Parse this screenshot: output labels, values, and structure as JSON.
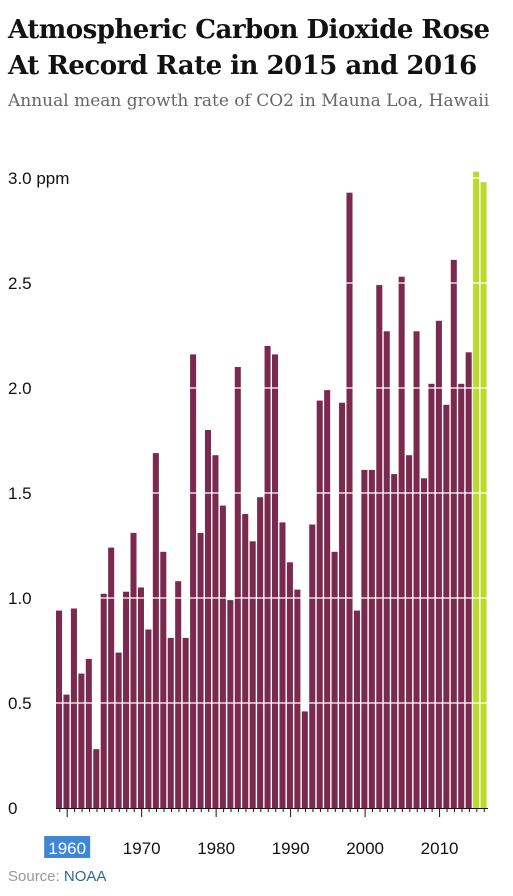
{
  "header": {
    "title": "Atmospheric Carbon Dioxide Rose At Record Rate in 2015 and 2016",
    "subtitle": "Annual mean growth rate of CO2 in Mauna Loa, Hawaii"
  },
  "footer": {
    "source_label": "Source:",
    "source_name": "NOAA"
  },
  "colors": {
    "bar": "#7b2a4f",
    "highlight": "#bcd92c",
    "grid": "#ffffff",
    "selection": "#3f86d6"
  },
  "chart_data": {
    "type": "bar",
    "title": "Atmospheric Carbon Dioxide Rose At Record Rate in 2015 and 2016",
    "subtitle": "Annual mean growth rate of CO2 in Mauna Loa, Hawaii",
    "xlabel": "",
    "ylabel": "",
    "unit": "ppm",
    "ylim": [
      0,
      3.0
    ],
    "y_ticks": [
      "0",
      "0.5",
      "1.0",
      "1.5",
      "2.0",
      "2.5",
      "3.0 ppm"
    ],
    "y_tick_values": [
      0,
      0.5,
      1.0,
      1.5,
      2.0,
      2.5,
      3.0
    ],
    "x_ticks": [
      "1960",
      "1970",
      "1980",
      "1990",
      "2000",
      "2010"
    ],
    "x_tick_values": [
      1960,
      1970,
      1980,
      1990,
      2000,
      2010
    ],
    "highlight_years": [
      2015,
      2016
    ],
    "x": [
      1959,
      1960,
      1961,
      1962,
      1963,
      1964,
      1965,
      1966,
      1967,
      1968,
      1969,
      1970,
      1971,
      1972,
      1973,
      1974,
      1975,
      1976,
      1977,
      1978,
      1979,
      1980,
      1981,
      1982,
      1983,
      1984,
      1985,
      1986,
      1987,
      1988,
      1989,
      1990,
      1991,
      1992,
      1993,
      1994,
      1995,
      1996,
      1997,
      1998,
      1999,
      2000,
      2001,
      2002,
      2003,
      2004,
      2005,
      2006,
      2007,
      2008,
      2009,
      2010,
      2011,
      2012,
      2013,
      2014,
      2015,
      2016
    ],
    "values": [
      0.94,
      0.54,
      0.95,
      0.64,
      0.71,
      0.28,
      1.02,
      1.24,
      0.74,
      1.03,
      1.31,
      1.05,
      0.85,
      1.69,
      1.22,
      0.81,
      1.08,
      0.81,
      2.16,
      1.31,
      1.8,
      1.68,
      1.44,
      0.99,
      2.1,
      1.4,
      1.27,
      1.48,
      2.2,
      2.16,
      1.36,
      1.17,
      1.04,
      0.46,
      1.35,
      1.94,
      1.99,
      1.22,
      1.93,
      2.93,
      0.94,
      1.61,
      1.61,
      2.49,
      2.27,
      1.59,
      2.53,
      1.68,
      2.27,
      1.57,
      2.02,
      2.32,
      1.92,
      2.61,
      2.02,
      2.17,
      3.03,
      2.98
    ]
  }
}
